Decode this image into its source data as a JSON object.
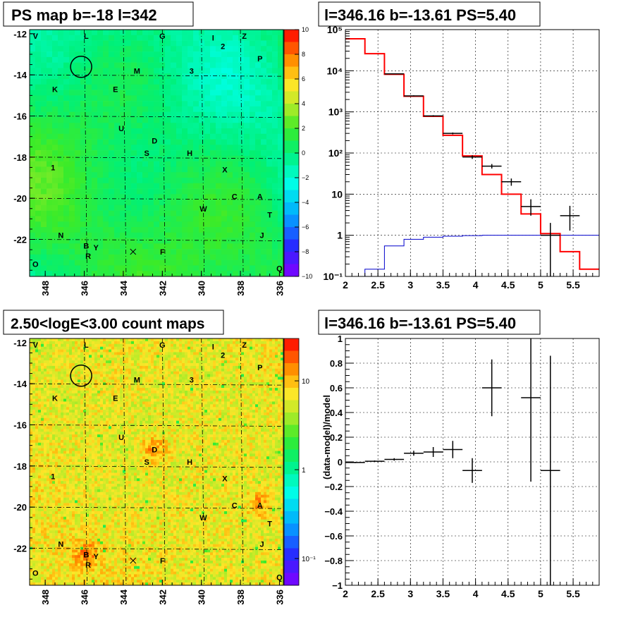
{
  "colors": {
    "frame": "#000000",
    "grid": "#000000",
    "model_line": "#ff0000",
    "bg_line": "#0000cc",
    "map_bg_ps": "#22ee55",
    "map_bg_counts": "#f2c22e"
  },
  "panels": {
    "ps_map": {
      "title": "PS map b=-18 l=342",
      "colorbar_ticks": [
        "10",
        "8",
        "6",
        "4",
        "2",
        "0",
        "−2",
        "−4",
        "−6",
        "−8",
        "−10"
      ],
      "x_ticks": [
        "348",
        "346",
        "344",
        "342",
        "340",
        "338",
        "336"
      ],
      "y_ticks": [
        "-12",
        "-14",
        "-16",
        "-18",
        "-20",
        "-22"
      ]
    },
    "count_map": {
      "title": "2.50<logE<3.00 count maps",
      "colorbar_ticks": [
        "10",
        "1",
        "10⁻¹"
      ],
      "x_ticks": [
        "348",
        "346",
        "344",
        "342",
        "340",
        "338",
        "336"
      ],
      "y_ticks": [
        "-12",
        "-14",
        "-16",
        "-18",
        "-20",
        "-22"
      ]
    },
    "spectrum": {
      "title": "l=346.16 b=-13.61 PS=5.40",
      "x_ticks": [
        "2",
        "2.5",
        "3",
        "3.5",
        "4",
        "4.5",
        "5",
        "5.5"
      ],
      "y_ticks": [
        "10⁻¹",
        "1",
        "10",
        "10²",
        "10³",
        "10⁴",
        "10⁵"
      ]
    },
    "residual": {
      "title": "l=346.16 b=-13.61 PS=5.40",
      "ylabel": "(data-model)/model",
      "x_ticks": [
        "2",
        "2.5",
        "3",
        "3.5",
        "4",
        "4.5",
        "5",
        "5.5"
      ],
      "y_ticks": [
        "1",
        "0.8",
        "0.6",
        "0.4",
        "0.2",
        "0",
        "−0.2",
        "−0.4",
        "−0.6",
        "−0.8",
        "−1"
      ]
    }
  },
  "source_labels": [
    {
      "t": "V",
      "l": 348.5,
      "b": -12.1
    },
    {
      "t": "L",
      "l": 345.9,
      "b": -12.1
    },
    {
      "t": "G",
      "l": 342.0,
      "b": -12.1
    },
    {
      "t": "I",
      "l": 339.4,
      "b": -12.2
    },
    {
      "t": "Z",
      "l": 337.8,
      "b": -12.1
    },
    {
      "t": "2",
      "l": 338.9,
      "b": -12.6
    },
    {
      "t": "P",
      "l": 337.0,
      "b": -13.2
    },
    {
      "t": "M",
      "l": 343.3,
      "b": -13.8
    },
    {
      "t": "3",
      "l": 340.5,
      "b": -13.8
    },
    {
      "t": "K",
      "l": 347.5,
      "b": -14.7
    },
    {
      "t": "E",
      "l": 344.4,
      "b": -14.7
    },
    {
      "t": "U",
      "l": 344.1,
      "b": -16.6
    },
    {
      "t": "D",
      "l": 342.4,
      "b": -17.2
    },
    {
      "t": "S",
      "l": 342.8,
      "b": -17.8
    },
    {
      "t": "H",
      "l": 340.6,
      "b": -17.8
    },
    {
      "t": "1",
      "l": 347.6,
      "b": -18.5
    },
    {
      "t": "X",
      "l": 338.8,
      "b": -18.6
    },
    {
      "t": "C",
      "l": 338.3,
      "b": -19.9
    },
    {
      "t": "A",
      "l": 337.0,
      "b": -19.9
    },
    {
      "t": "W",
      "l": 339.9,
      "b": -20.5
    },
    {
      "t": "T",
      "l": 336.5,
      "b": -20.8
    },
    {
      "t": "N",
      "l": 347.2,
      "b": -21.8
    },
    {
      "t": "J",
      "l": 336.9,
      "b": -21.8
    },
    {
      "t": "B",
      "l": 345.9,
      "b": -22.3
    },
    {
      "t": "Y",
      "l": 345.4,
      "b": -22.4
    },
    {
      "t": "R",
      "l": 345.8,
      "b": -22.8
    },
    {
      "t": "F",
      "l": 342.0,
      "b": -22.6
    },
    {
      "t": "O",
      "l": 348.5,
      "b": -23.2
    },
    {
      "t": "Q",
      "l": 336.0,
      "b": -23.4
    }
  ],
  "chart_data": [
    {
      "type": "heatmap",
      "name": "ps_map",
      "title": "PS map b=-18 l=342",
      "xlim": [
        348.8,
        335.8
      ],
      "ylim": [
        -23.8,
        -11.8
      ],
      "zlim": [
        -10,
        10
      ],
      "grid": true,
      "circle_marker": {
        "l": 346.16,
        "b": -13.61
      },
      "cross_marker": {
        "l": 343.5,
        "b": -22.6
      }
    },
    {
      "type": "line",
      "name": "spectrum",
      "title": "l=346.16 b=-13.61 PS=5.40",
      "xlim": [
        2,
        5.9
      ],
      "ylim": [
        0.1,
        100000
      ],
      "yscale": "log",
      "grid": true,
      "model_steps": {
        "edges": [
          2,
          2.3,
          2.6,
          2.9,
          3.2,
          3.5,
          3.8,
          4.1,
          4.4,
          4.7,
          5.0,
          5.3,
          5.6,
          5.9
        ],
        "values": [
          60000,
          26000,
          8200,
          2400,
          780,
          270,
          85,
          30,
          10,
          3.3,
          1.1,
          0.4,
          0.15
        ]
      },
      "background_steps": {
        "edges": [
          2,
          2.3,
          2.6,
          2.9,
          3.2,
          3.5,
          3.8,
          4.1,
          4.4,
          4.7,
          5.0,
          5.3,
          5.6,
          5.9
        ],
        "values": [
          0.1,
          0.15,
          0.55,
          0.8,
          0.9,
          0.95,
          0.98,
          1.0,
          1.0,
          1.0,
          1.0,
          1.0,
          1.0
        ]
      },
      "data_points": [
        {
          "x": 2.75,
          "y": 8400,
          "lo": 8200,
          "hi": 8600,
          "xerr": 0.15
        },
        {
          "x": 3.05,
          "y": 2450,
          "lo": 2380,
          "hi": 2520,
          "xerr": 0.15
        },
        {
          "x": 3.35,
          "y": 800,
          "lo": 770,
          "hi": 830,
          "xerr": 0.15
        },
        {
          "x": 3.65,
          "y": 300,
          "lo": 285,
          "hi": 315,
          "xerr": 0.15
        },
        {
          "x": 3.95,
          "y": 80,
          "lo": 72,
          "hi": 88,
          "xerr": 0.15
        },
        {
          "x": 4.25,
          "y": 48,
          "lo": 42,
          "hi": 54,
          "xerr": 0.15
        },
        {
          "x": 4.55,
          "y": 20,
          "lo": 16,
          "hi": 24,
          "xerr": 0.15
        },
        {
          "x": 4.85,
          "y": 5,
          "lo": 3,
          "hi": 7.5,
          "xerr": 0.15
        },
        {
          "x": 5.15,
          "y": 1,
          "lo": 0.1,
          "hi": 2,
          "xerr": 0.15
        },
        {
          "x": 5.45,
          "y": 3,
          "lo": 1.3,
          "hi": 5.2,
          "xerr": 0.15
        }
      ]
    },
    {
      "type": "heatmap",
      "name": "count_map",
      "title": "2.50<logE<3.00 count maps",
      "xlim": [
        348.8,
        335.8
      ],
      "ylim": [
        -23.8,
        -11.8
      ],
      "zscale": "log",
      "zlim": [
        0.05,
        30
      ],
      "grid": true,
      "circle_marker": {
        "l": 346.16,
        "b": -13.61
      },
      "cross_marker": {
        "l": 343.5,
        "b": -22.6
      },
      "hotspots": [
        {
          "l": 337.0,
          "b": -19.9
        },
        {
          "l": 345.9,
          "b": -22.3
        },
        {
          "l": 342.4,
          "b": -17.2
        }
      ]
    },
    {
      "type": "scatter",
      "name": "residual",
      "title": "l=346.16 b=-13.61 PS=5.40",
      "ylabel": "(data-model)/model",
      "xlim": [
        2,
        5.9
      ],
      "ylim": [
        -1,
        1
      ],
      "grid": true,
      "data_points": [
        {
          "x": 2.15,
          "y": -0.005,
          "err": 0.005,
          "xerr": 0.15
        },
        {
          "x": 2.45,
          "y": 0.005,
          "err": 0.006,
          "xerr": 0.15
        },
        {
          "x": 2.75,
          "y": 0.02,
          "err": 0.01,
          "xerr": 0.15
        },
        {
          "x": 3.05,
          "y": 0.07,
          "err": 0.02,
          "xerr": 0.15
        },
        {
          "x": 3.35,
          "y": 0.08,
          "err": 0.04,
          "xerr": 0.15
        },
        {
          "x": 3.65,
          "y": 0.1,
          "err": 0.07,
          "xerr": 0.15
        },
        {
          "x": 3.95,
          "y": -0.07,
          "err": 0.1,
          "xerr": 0.15
        },
        {
          "x": 4.25,
          "y": 0.6,
          "err": 0.23,
          "xerr": 0.15
        },
        {
          "x": 4.85,
          "y": 0.52,
          "err": 0.68,
          "xerr": 0.15
        },
        {
          "x": 5.15,
          "y": -0.07,
          "err": 0.93,
          "xerr": 0.15
        }
      ]
    }
  ]
}
